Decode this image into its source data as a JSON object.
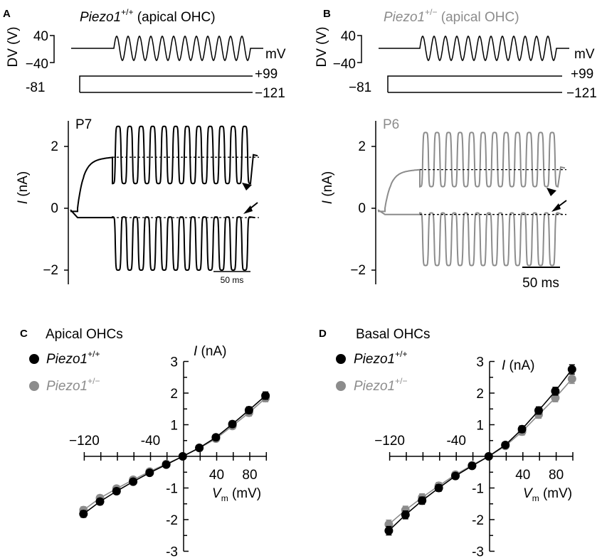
{
  "colors": {
    "wt": "#000000",
    "het": "#8c8c8c",
    "ref": "#000000"
  },
  "panels": {
    "A": {
      "label": "A",
      "title_gene": "Piezo1",
      "title_sup": "+/+",
      "title_rest": " (apical OHC)",
      "dv_axis_label": "DV (V)",
      "dv_ticks": [
        "40",
        "−40"
      ],
      "mv_unit": "mV",
      "hold": "-81",
      "step_top": "+99",
      "step_bottom": "−121",
      "age": "P7",
      "y_label": "I",
      "y_unit": " (nA)",
      "y_ticks": [
        "2",
        "0",
        "−2"
      ],
      "scale_bar": "50 ms",
      "color": "#000000",
      "baseline_pos": 1.65,
      "baseline_neg": -0.3,
      "peak_pos": 2.65,
      "trough_pos": 0.8,
      "peak_neg": -0.28,
      "trough_neg": -2.0
    },
    "B": {
      "label": "B",
      "title_gene": "Piezo1",
      "title_sup": "+/−",
      "title_rest": " (apical OHC)",
      "dv_axis_label": "DV (V)",
      "dv_ticks": [
        "40",
        "−40"
      ],
      "mv_unit": "mV",
      "hold": "−81",
      "step_top": "+99",
      "step_bottom": "−121",
      "age": "P6",
      "y_label": "I",
      "y_unit": " (nA)",
      "y_ticks": [
        "2",
        "0",
        "−2"
      ],
      "scale_bar": "50 ms",
      "color": "#8c8c8c",
      "baseline_pos": 1.25,
      "baseline_neg": -0.2,
      "peak_pos": 2.45,
      "trough_pos": 0.7,
      "peak_neg": -0.15,
      "trough_neg": -1.85
    },
    "C": {
      "label": "C",
      "title": "Apical OHCs",
      "legend_wt_gene": "Piezo1",
      "legend_wt_sup": "+/+",
      "legend_het_gene": "Piezo1",
      "legend_het_sup": "+/−",
      "y_label": "I",
      "y_unit": " (nA)",
      "x_label": "V",
      "x_sub": "m",
      "x_unit": " (mV)",
      "y_ticks": [
        "3",
        "2",
        "1",
        "-1",
        "-2",
        "-3"
      ],
      "x_ticks": [
        "−120",
        "-40",
        "40",
        "80"
      ]
    },
    "D": {
      "label": "D",
      "title": "Basal OHCs",
      "legend_wt_gene": "Piezo1",
      "legend_wt_sup": "+/+",
      "legend_het_gene": "Piezo1",
      "legend_het_sup": "+/−",
      "y_label": "I",
      "y_unit": " (nA)",
      "x_label": "V",
      "x_sub": "m",
      "x_unit": " (mV)",
      "y_ticks": [
        "3",
        "2",
        "1",
        "-1",
        "-2",
        "-3"
      ],
      "x_ticks": [
        "−120",
        "-40",
        "40",
        "80"
      ]
    }
  },
  "chart_data": [
    {
      "panel": "A",
      "type": "line",
      "title": "Piezo1+/+ (apical OHC)",
      "xlabel": "",
      "ylabel": "I (nA)",
      "ylim": [
        -2.5,
        3
      ],
      "grid": false,
      "stimulus": {
        "holding_mV": -81,
        "step_mV": [
          99,
          -121
        ],
        "sine_amplitude_mV": 40,
        "sine_cycles": 12
      },
      "series": [
        {
          "name": "+99",
          "baseline": 1.65,
          "peak": 2.65,
          "trough": 0.8
        },
        {
          "name": "−121",
          "baseline": -0.3,
          "peak": -0.28,
          "trough": -2.0
        }
      ]
    },
    {
      "panel": "B",
      "type": "line",
      "title": "Piezo1+/− (apical OHC)",
      "xlabel": "",
      "ylabel": "I (nA)",
      "ylim": [
        -2.5,
        3
      ],
      "grid": false,
      "stimulus": {
        "holding_mV": -81,
        "step_mV": [
          99,
          -121
        ],
        "sine_amplitude_mV": 40,
        "sine_cycles": 12
      },
      "series": [
        {
          "name": "+99",
          "baseline": 1.25,
          "peak": 2.45,
          "trough": 0.7
        },
        {
          "name": "−121",
          "baseline": -0.2,
          "peak": -0.15,
          "trough": -1.85
        }
      ]
    },
    {
      "panel": "C",
      "type": "scatter",
      "title": "Apical OHCs",
      "xlabel": "Vm (mV)",
      "ylabel": "I (nA)",
      "xlim": [
        -120,
        100
      ],
      "ylim": [
        -3,
        3
      ],
      "grid": false,
      "legend": "top-left",
      "x": [
        -121,
        -101,
        -81,
        -61,
        -41,
        -21,
        -1,
        19,
        39,
        59,
        79,
        99
      ],
      "series": [
        {
          "name": "Piezo1+/+",
          "color": "#000000",
          "values": [
            -1.82,
            -1.43,
            -1.1,
            -0.8,
            -0.52,
            -0.26,
            0.0,
            0.27,
            0.6,
            1.02,
            1.46,
            1.92
          ],
          "errors": [
            0.06,
            0.05,
            0.05,
            0.04,
            0.03,
            0.03,
            0.02,
            0.03,
            0.04,
            0.05,
            0.06,
            0.07
          ]
        },
        {
          "name": "Piezo1+/−",
          "color": "#8c8c8c",
          "values": [
            -1.7,
            -1.32,
            -1.02,
            -0.74,
            -0.48,
            -0.24,
            0.0,
            0.26,
            0.56,
            0.96,
            1.38,
            1.84
          ],
          "errors": [
            0.06,
            0.05,
            0.05,
            0.04,
            0.03,
            0.03,
            0.02,
            0.03,
            0.04,
            0.05,
            0.06,
            0.07
          ]
        }
      ]
    },
    {
      "panel": "D",
      "type": "scatter",
      "title": "Basal OHCs",
      "xlabel": "Vm (mV)",
      "ylabel": "I (nA)",
      "xlim": [
        -120,
        100
      ],
      "ylim": [
        -3,
        3
      ],
      "grid": false,
      "legend": "top-left",
      "x": [
        -121,
        -101,
        -81,
        -61,
        -41,
        -21,
        -1,
        19,
        39,
        59,
        79,
        99
      ],
      "series": [
        {
          "name": "Piezo1+/+",
          "color": "#000000",
          "values": [
            -2.35,
            -1.85,
            -1.4,
            -1.0,
            -0.62,
            -0.3,
            0.0,
            0.36,
            0.86,
            1.45,
            2.06,
            2.75
          ],
          "errors": [
            0.09,
            0.08,
            0.07,
            0.06,
            0.05,
            0.04,
            0.03,
            0.04,
            0.06,
            0.07,
            0.08,
            0.1
          ]
        },
        {
          "name": "Piezo1+/−",
          "color": "#8c8c8c",
          "values": [
            -2.15,
            -1.7,
            -1.3,
            -0.93,
            -0.58,
            -0.28,
            0.0,
            0.33,
            0.78,
            1.32,
            1.85,
            2.45
          ],
          "errors": [
            0.09,
            0.08,
            0.07,
            0.06,
            0.05,
            0.04,
            0.03,
            0.04,
            0.06,
            0.07,
            0.08,
            0.1
          ]
        }
      ]
    }
  ]
}
